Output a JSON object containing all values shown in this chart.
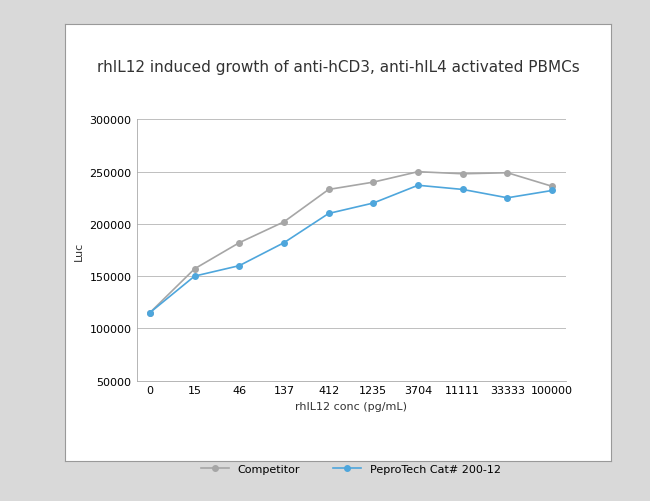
{
  "title": "rhIL12 induced growth of anti-hCD3, anti-hIL4 activated PBMCs",
  "xlabel": "rhIL12 conc (pg/mL)",
  "ylabel": "Luc",
  "x_labels": [
    "0",
    "15",
    "46",
    "137",
    "412",
    "1235",
    "3704",
    "11111",
    "33333",
    "100000"
  ],
  "x_values": [
    0,
    1,
    2,
    3,
    4,
    5,
    6,
    7,
    8,
    9
  ],
  "peprotech_values": [
    115000,
    150000,
    160000,
    182000,
    210000,
    220000,
    237000,
    233000,
    225000,
    232000
  ],
  "competitor_values": [
    115000,
    157000,
    182000,
    202000,
    233000,
    240000,
    250000,
    248000,
    249000,
    236000
  ],
  "peprotech_color": "#4EA6DC",
  "competitor_color": "#A6A6A6",
  "peprotech_label": "PeproTech Cat# 200-12",
  "competitor_label": "Competitor",
  "ylim": [
    50000,
    300000
  ],
  "yticks": [
    50000,
    100000,
    150000,
    200000,
    250000,
    300000
  ],
  "fig_background": "#D9D9D9",
  "panel_background": "#FFFFFF",
  "plot_background": "#FFFFFF",
  "grid_color": "#BEBEBE",
  "title_fontsize": 11,
  "axis_fontsize": 8,
  "tick_fontsize": 8,
  "legend_fontsize": 8
}
